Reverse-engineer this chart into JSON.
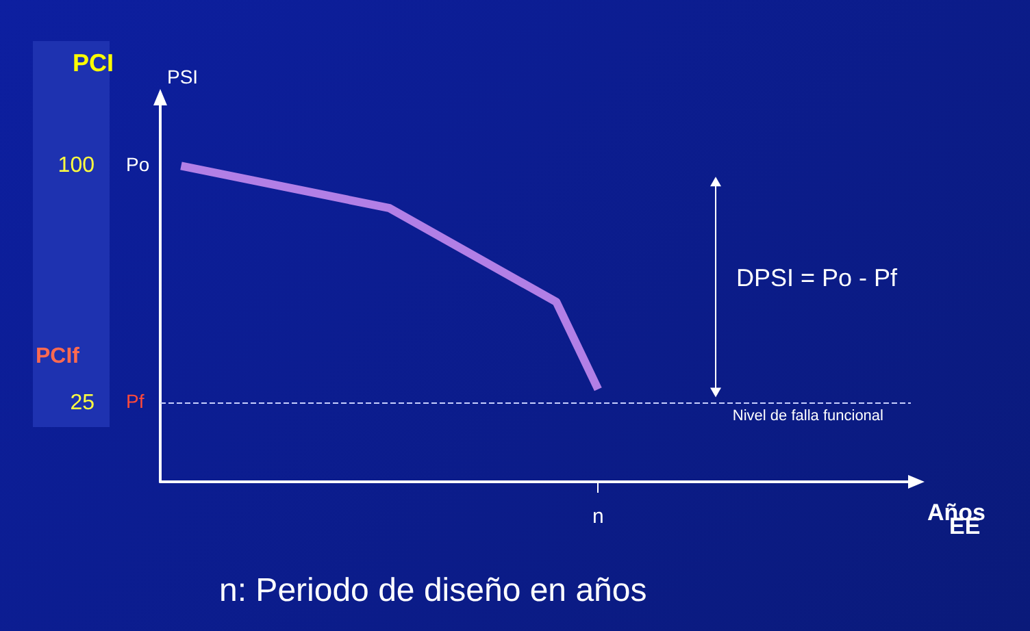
{
  "chart_data": {
    "type": "line",
    "xlabel": "Años",
    "ylabel": "PCI",
    "categories": [
      null,
      null,
      null,
      null,
      null,
      null,
      null,
      null,
      null,
      null,
      "n",
      null,
      null,
      null,
      null,
      null,
      null,
      null
    ],
    "series": [
      {
        "color": "#b27fe6",
        "values": [
          100,
          null,
          null,
          null,
          null,
          86.6,
          null,
          null,
          null,
          56.9,
          29.3,
          null,
          null,
          null,
          null,
          null,
          null,
          null
        ]
      }
    ],
    "ylim": [
      0,
      120
    ],
    "yticks": [
      100,
      25
    ],
    "ref_lines": [
      {
        "axis": "y",
        "value": 25,
        "label": "Nivel de falla funcional",
        "color": "#c8d0ff",
        "line_style": "dashed"
      }
    ],
    "annotations": [
      "PCIf",
      "DPSI = Po - Pf",
      "EE",
      "n: Periodo de diseño en años",
      "PSI",
      "Po",
      "Pf"
    ],
    "marker": "none",
    "line_style": "solid",
    "grid": false
  }
}
